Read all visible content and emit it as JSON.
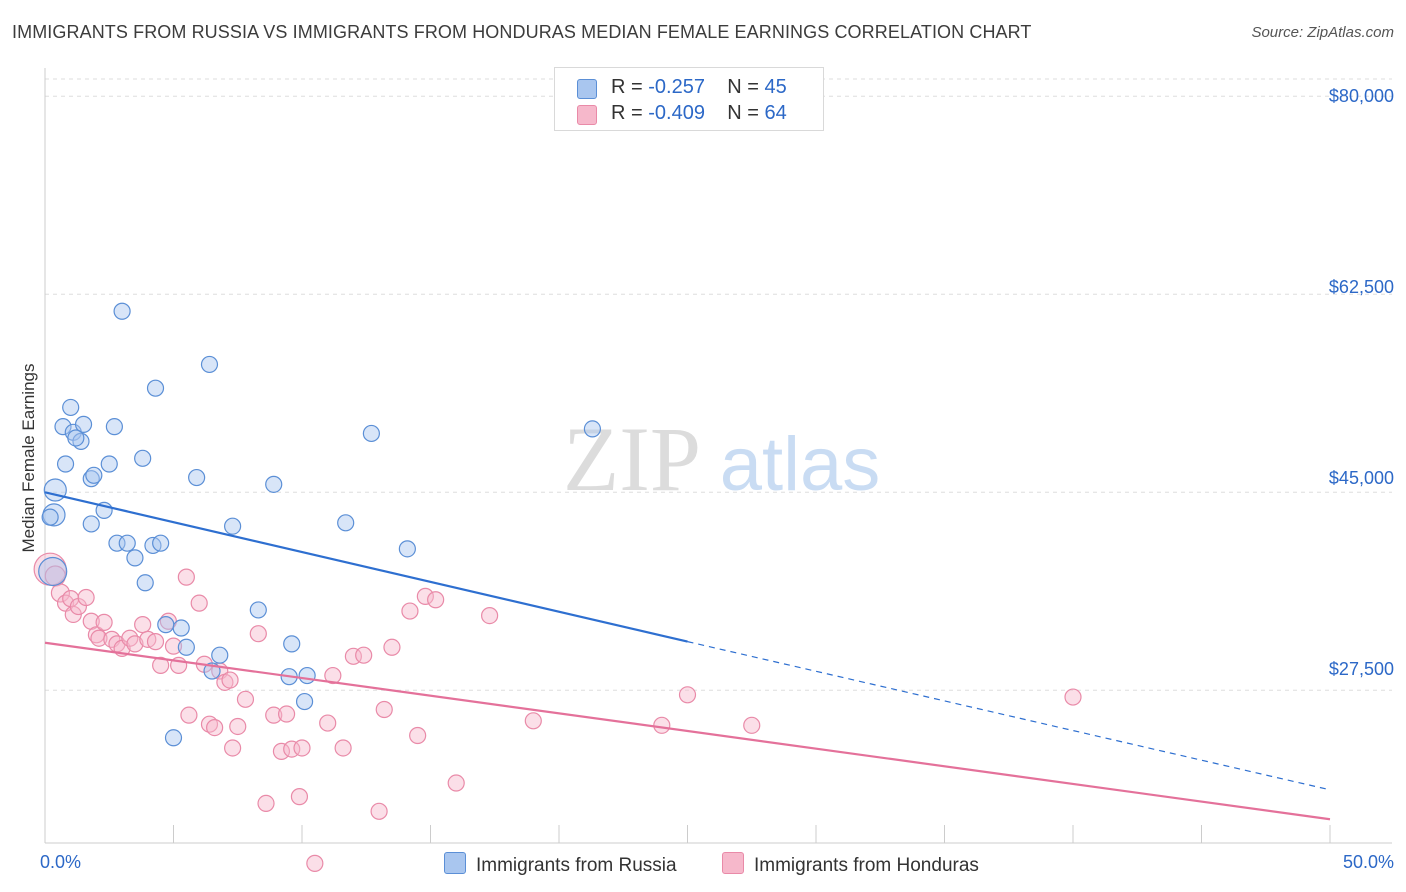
{
  "title": "IMMIGRANTS FROM RUSSIA VS IMMIGRANTS FROM HONDURAS MEDIAN FEMALE EARNINGS CORRELATION CHART",
  "source": "Source: ZipAtlas.com",
  "watermark": {
    "zip": "ZIP",
    "atlas": "atlas"
  },
  "legend_top": {
    "rows": [
      {
        "r_label": "R =",
        "r_value": "-0.257",
        "n_label": "N =",
        "n_value": "45"
      },
      {
        "r_label": "R =",
        "r_value": "-0.409",
        "n_label": "N =",
        "n_value": "64"
      }
    ]
  },
  "chart_data": {
    "type": "scatter",
    "title": "IMMIGRANTS FROM RUSSIA VS IMMIGRANTS FROM HONDURAS MEDIAN FEMALE EARNINGS CORRELATION CHART",
    "xlabel": "",
    "ylabel": "Median Female Earnings",
    "xlim": [
      0,
      50
    ],
    "ylim": [
      14000,
      82500
    ],
    "x_tick_labels": {
      "min": "0.0%",
      "max": "50.0%"
    },
    "y_ticks": [
      {
        "value": 80000,
        "label": "$80,000"
      },
      {
        "value": 62500,
        "label": "$62,500"
      },
      {
        "value": 45000,
        "label": "$45,000"
      },
      {
        "value": 27500,
        "label": "$27,500"
      }
    ],
    "colors": {
      "russia": "#a9c6ef",
      "russia_stroke": "#5b8fd6",
      "russia_line": "#2e6fd0",
      "honduras": "#f6b8cb",
      "honduras_stroke": "#e98aa8",
      "honduras_line": "#e4719a",
      "axis_text": "#2c68c7"
    },
    "series": [
      {
        "name": "Immigrants from Russia",
        "r": -0.257,
        "n": 45,
        "trend": {
          "x0": 0,
          "y0": 45000,
          "x1": 25,
          "y1": 31800,
          "dash_to_x": 50,
          "dash_to_y": 18700
        },
        "points": [
          [
            0.3,
            38000,
            14
          ],
          [
            0.4,
            45200,
            11
          ],
          [
            0.35,
            43000,
            11
          ],
          [
            0.7,
            50800,
            8
          ],
          [
            1.0,
            52500,
            8
          ],
          [
            0.8,
            47500,
            8
          ],
          [
            1.1,
            50300,
            8
          ],
          [
            1.5,
            51000,
            8
          ],
          [
            1.4,
            49500,
            8
          ],
          [
            1.8,
            46200,
            8
          ],
          [
            1.9,
            46500,
            8
          ],
          [
            1.8,
            42200,
            8
          ],
          [
            2.3,
            43400,
            8
          ],
          [
            2.5,
            47500,
            8
          ],
          [
            2.7,
            50800,
            8
          ],
          [
            3.0,
            61000,
            8
          ],
          [
            2.8,
            40500,
            8
          ],
          [
            3.2,
            40500,
            8
          ],
          [
            3.5,
            39200,
            8
          ],
          [
            3.8,
            48000,
            8
          ],
          [
            3.9,
            37000,
            8
          ],
          [
            4.2,
            40300,
            8
          ],
          [
            4.3,
            54200,
            8
          ],
          [
            4.5,
            40500,
            8
          ],
          [
            4.7,
            33300,
            8
          ],
          [
            5.0,
            23300,
            8
          ],
          [
            5.3,
            33000,
            8
          ],
          [
            5.5,
            31300,
            8
          ],
          [
            5.9,
            46300,
            8
          ],
          [
            6.4,
            56300,
            8
          ],
          [
            6.5,
            29200,
            8
          ],
          [
            6.8,
            30600,
            8
          ],
          [
            7.3,
            42000,
            8
          ],
          [
            8.3,
            34600,
            8
          ],
          [
            8.9,
            45700,
            8
          ],
          [
            9.6,
            31600,
            8
          ],
          [
            9.5,
            28700,
            8
          ],
          [
            10.1,
            26500,
            8
          ],
          [
            10.2,
            28800,
            8
          ],
          [
            11.7,
            42300,
            8
          ],
          [
            12.7,
            50200,
            8
          ],
          [
            14.1,
            40000,
            8
          ],
          [
            21.3,
            50600,
            8
          ],
          [
            0.2,
            42800,
            8
          ],
          [
            1.2,
            49800,
            8
          ]
        ]
      },
      {
        "name": "Immigrants from Honduras",
        "r": -0.409,
        "n": 64,
        "trend": {
          "x0": 0,
          "y0": 31700,
          "x1": 50,
          "y1": 16100
        },
        "points": [
          [
            0.2,
            38200,
            16
          ],
          [
            0.4,
            37600,
            10
          ],
          [
            0.6,
            36100,
            9
          ],
          [
            0.8,
            35200,
            8
          ],
          [
            1.0,
            35600,
            8
          ],
          [
            1.1,
            34200,
            8
          ],
          [
            1.3,
            34900,
            8
          ],
          [
            1.6,
            35700,
            8
          ],
          [
            1.8,
            33600,
            8
          ],
          [
            2.0,
            32400,
            8
          ],
          [
            2.1,
            32100,
            8
          ],
          [
            2.3,
            33500,
            8
          ],
          [
            2.6,
            32000,
            8
          ],
          [
            2.8,
            31600,
            8
          ],
          [
            3.0,
            31200,
            8
          ],
          [
            3.3,
            32100,
            8
          ],
          [
            3.5,
            31600,
            8
          ],
          [
            3.8,
            33300,
            8
          ],
          [
            4.0,
            32000,
            8
          ],
          [
            4.3,
            31800,
            8
          ],
          [
            4.5,
            29700,
            8
          ],
          [
            4.8,
            33600,
            8
          ],
          [
            5.0,
            31400,
            8
          ],
          [
            5.2,
            29700,
            8
          ],
          [
            5.5,
            37500,
            8
          ],
          [
            5.6,
            25300,
            8
          ],
          [
            6.0,
            35200,
            8
          ],
          [
            6.2,
            29800,
            8
          ],
          [
            6.4,
            24500,
            8
          ],
          [
            6.6,
            24200,
            8
          ],
          [
            6.8,
            29200,
            8
          ],
          [
            7.0,
            28200,
            8
          ],
          [
            7.2,
            28400,
            8
          ],
          [
            7.3,
            22400,
            8
          ],
          [
            7.5,
            24300,
            8
          ],
          [
            7.8,
            26700,
            8
          ],
          [
            8.3,
            32500,
            8
          ],
          [
            8.6,
            17500,
            8
          ],
          [
            8.9,
            25300,
            8
          ],
          [
            9.2,
            22100,
            8
          ],
          [
            9.4,
            25400,
            8
          ],
          [
            9.6,
            22300,
            8
          ],
          [
            9.9,
            18100,
            8
          ],
          [
            10.0,
            22400,
            8
          ],
          [
            10.5,
            12200,
            8
          ],
          [
            11.0,
            24600,
            8
          ],
          [
            11.2,
            28800,
            8
          ],
          [
            11.6,
            22400,
            8
          ],
          [
            12.0,
            30500,
            8
          ],
          [
            12.4,
            30600,
            8
          ],
          [
            13.0,
            16800,
            8
          ],
          [
            13.2,
            25800,
            8
          ],
          [
            13.5,
            31300,
            8
          ],
          [
            14.2,
            34500,
            8
          ],
          [
            14.5,
            23500,
            8
          ],
          [
            14.8,
            35800,
            8
          ],
          [
            15.2,
            35500,
            8
          ],
          [
            16.0,
            19300,
            8
          ],
          [
            17.3,
            34100,
            8
          ],
          [
            19.0,
            24800,
            8
          ],
          [
            24.0,
            24400,
            8
          ],
          [
            25.0,
            27100,
            8
          ],
          [
            27.5,
            24400,
            8
          ],
          [
            40.0,
            26900,
            8
          ]
        ]
      }
    ]
  }
}
